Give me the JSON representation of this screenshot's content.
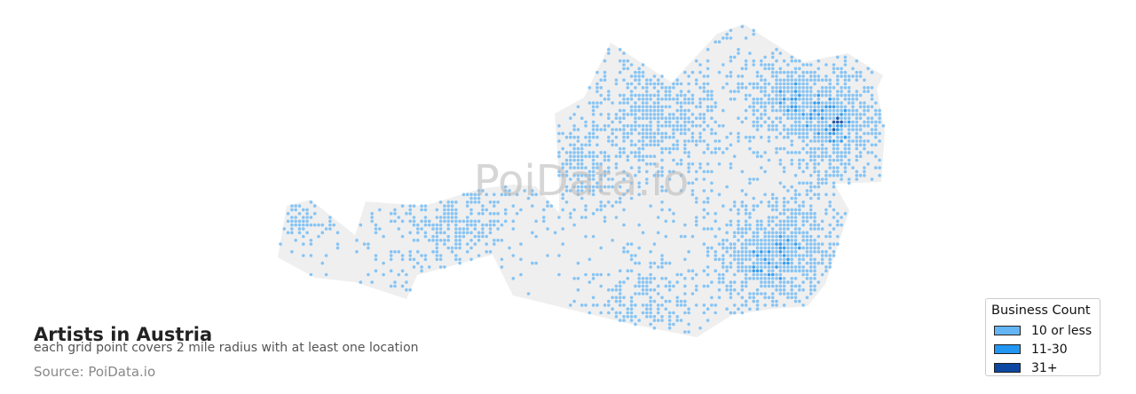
{
  "chart_data": {
    "type": "map",
    "title": "Artists in Austria",
    "subtitle": "each grid point covers 2 mile radius with at least one location",
    "source": "Source: PoiData.io",
    "watermark": "PoiData.io",
    "region": "Austria",
    "land_color": "#efefef",
    "legend": {
      "title": "Business Count",
      "placement": "bottom-right",
      "items": [
        {
          "label": "10 or less",
          "color": "#64b5f6"
        },
        {
          "label": "11-30",
          "color": "#2196f3"
        },
        {
          "label": "31+",
          "color": "#0d47a1"
        }
      ]
    }
  }
}
